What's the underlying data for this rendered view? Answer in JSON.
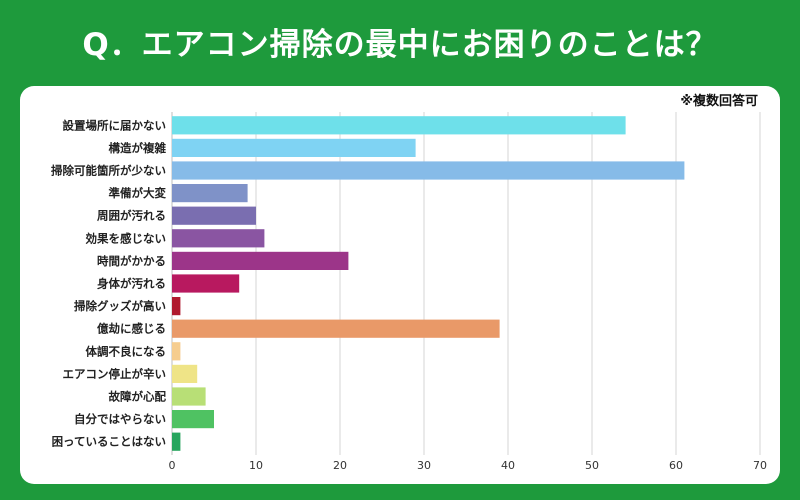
{
  "header": {
    "title": "Q．エアコン掃除の最中にお困りのことは？"
  },
  "note": "※複数回答可",
  "chart_data": {
    "type": "bar",
    "orientation": "horizontal",
    "title": "Q．エアコン掃除の最中にお困りのことは？",
    "xlabel": "",
    "ylabel": "",
    "xlim": [
      0,
      70
    ],
    "xticks": [
      0,
      10,
      20,
      30,
      40,
      50,
      60,
      70
    ],
    "grid": true,
    "categories": [
      "設置場所に届かない",
      "構造が複雑",
      "掃除可能箇所が少ない",
      "準備が大変",
      "周囲が汚れる",
      "効果を感じない",
      "時間がかかる",
      "身体が汚れる",
      "掃除グッズが高い",
      "億劫に感じる",
      "体調不良になる",
      "エアコン停止が辛い",
      "故障が心配",
      "自分ではやらない",
      "困っていることはない"
    ],
    "values": [
      54,
      29,
      61,
      9,
      10,
      11,
      21,
      8,
      1,
      39,
      1,
      3,
      4,
      5,
      1
    ],
    "colors": [
      "#6ee0ea",
      "#7fd3f3",
      "#86bbe8",
      "#7f92c8",
      "#7a6eb0",
      "#8a55a2",
      "#9c3589",
      "#b8195f",
      "#b01a2e",
      "#e99968",
      "#f6cd8f",
      "#efe487",
      "#b8df76",
      "#4fc262",
      "#27a55e"
    ]
  }
}
